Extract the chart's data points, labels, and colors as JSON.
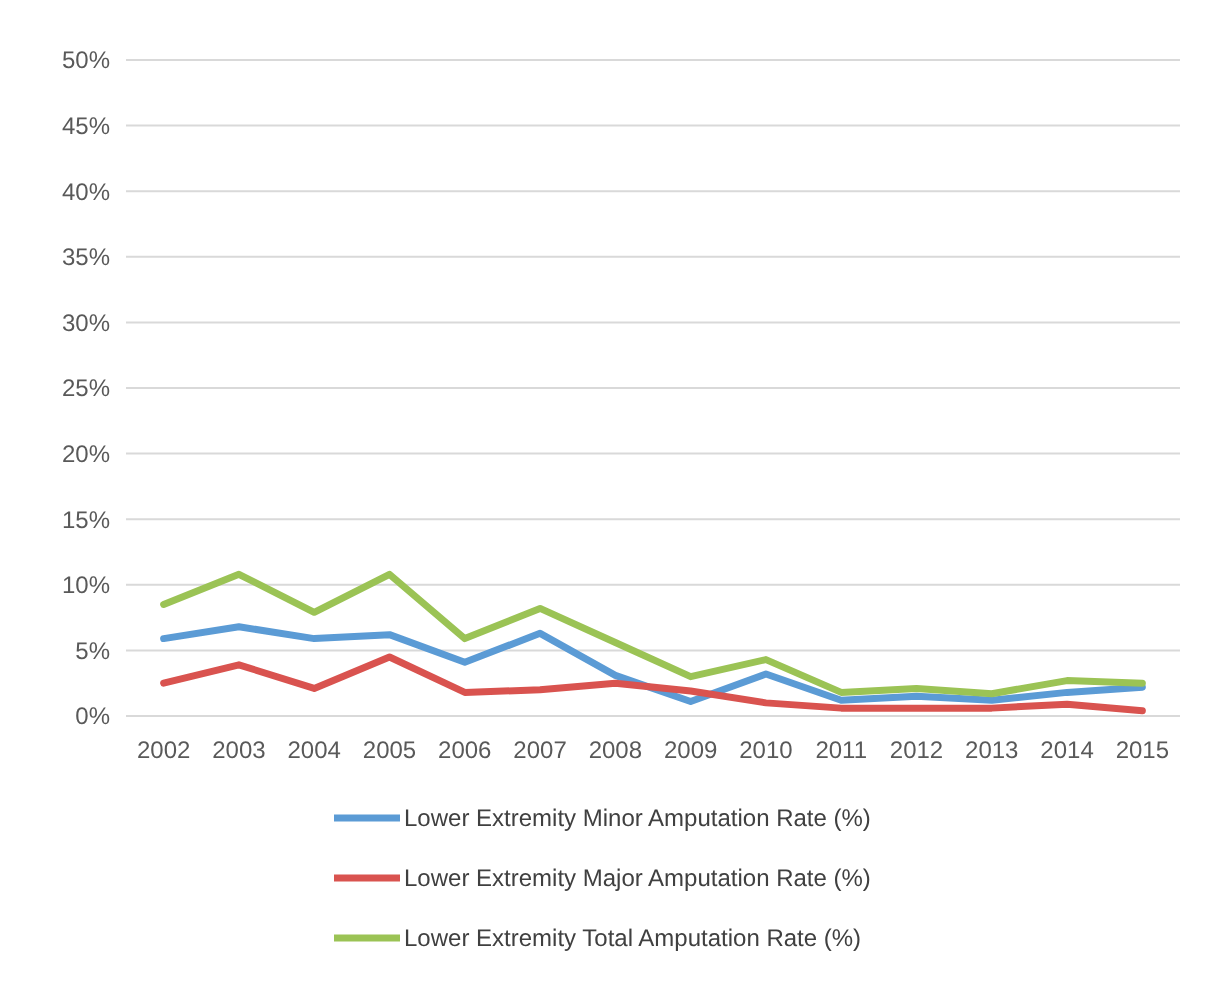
{
  "chart_data": {
    "type": "line",
    "categories": [
      "2002",
      "2003",
      "2004",
      "2005",
      "2006",
      "2007",
      "2008",
      "2009",
      "2010",
      "2011",
      "2012",
      "2013",
      "2014",
      "2015"
    ],
    "series": [
      {
        "name": "Lower Extremity Minor Amputation Rate (%)",
        "color": "#5b9bd5",
        "values": [
          5.9,
          6.8,
          5.9,
          6.2,
          4.1,
          6.3,
          3.1,
          1.1,
          3.2,
          1.2,
          1.5,
          1.2,
          1.8,
          2.2
        ]
      },
      {
        "name": "Lower Extremity Major Amputation Rate (%)",
        "color": "#d9534f",
        "values": [
          2.5,
          3.9,
          2.1,
          4.5,
          1.8,
          2.0,
          2.5,
          1.9,
          1.0,
          0.6,
          0.6,
          0.6,
          0.9,
          0.4
        ]
      },
      {
        "name": "Lower Extremity Total Amputation Rate (%)",
        "color": "#9bc355",
        "values": [
          8.5,
          10.8,
          7.9,
          10.8,
          5.9,
          8.2,
          5.6,
          3.0,
          4.3,
          1.8,
          2.1,
          1.7,
          2.7,
          2.5
        ]
      }
    ],
    "ylim": [
      0,
      50
    ],
    "yticks": [
      {
        "value": 0,
        "label": "0%"
      },
      {
        "value": 5,
        "label": "5%"
      },
      {
        "value": 10,
        "label": "10%"
      },
      {
        "value": 15,
        "label": "15%"
      },
      {
        "value": 20,
        "label": "20%"
      },
      {
        "value": 25,
        "label": "25%"
      },
      {
        "value": 30,
        "label": "30%"
      },
      {
        "value": 35,
        "label": "35%"
      },
      {
        "value": 40,
        "label": "40%"
      },
      {
        "value": 45,
        "label": "45%"
      },
      {
        "value": 50,
        "label": "50%"
      }
    ],
    "grid": "y",
    "legend": "bottom",
    "marker": "none",
    "line_style": "solid"
  }
}
